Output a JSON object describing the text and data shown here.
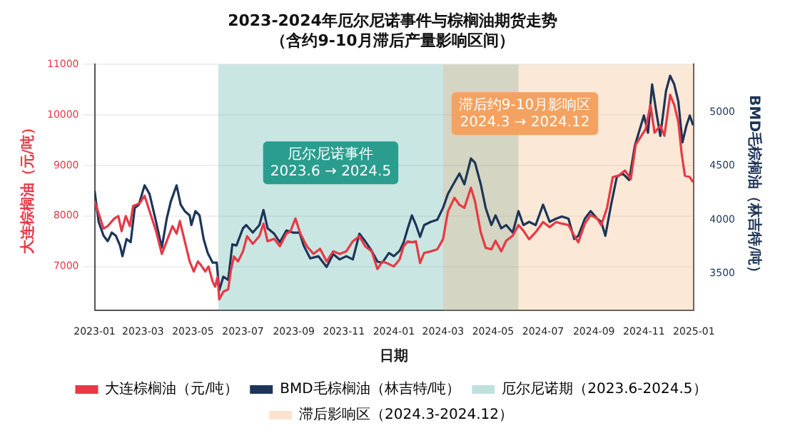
{
  "chart_data": {
    "type": "line",
    "title": "2023-2024年厄尔尼诺事件与棕榈油期货走势（含约9-10月滞后产量影响区间）",
    "xlabel": "日期",
    "ylabel": "大连棕榈油（元/吨）",
    "y2label": "BMD毛棕榈油（林吉特/吨）",
    "xlim": [
      "2023-01-01",
      "2025-01-01"
    ],
    "xticks": [
      "2023-01",
      "2023-03",
      "2023-05",
      "2023-07",
      "2023-09",
      "2023-11",
      "2024-01",
      "2024-03",
      "2024-05",
      "2024-07",
      "2024-09",
      "2024-11",
      "2025-01"
    ],
    "ylim": [
      6130,
      11000
    ],
    "yticks": [
      7000,
      8000,
      9000,
      10000,
      11000
    ],
    "y2lim": [
      3155,
      5445
    ],
    "y2ticks": [
      3500,
      4000,
      4500,
      5000
    ],
    "grid": "y",
    "legend": "bottom",
    "marker": "none",
    "line_style": "solid",
    "series": [
      {
        "name": "大连棕榈油（元/吨）",
        "color": "#e63946",
        "x": [
          "2023-01-01",
          "2023-01-07",
          "2023-01-12",
          "2023-01-17",
          "2023-01-25",
          "2023-01-30",
          "2023-02-03",
          "2023-02-08",
          "2023-02-13",
          "2023-02-17",
          "2023-02-25",
          "2023-03-03",
          "2023-03-09",
          "2023-03-17",
          "2023-03-24",
          "2023-03-30",
          "2023-04-06",
          "2023-04-11",
          "2023-04-15",
          "2023-04-21",
          "2023-04-27",
          "2023-05-02",
          "2023-05-07",
          "2023-05-12",
          "2023-05-16",
          "2023-05-20",
          "2023-05-25",
          "2023-05-28",
          "2023-05-31",
          "2023-06-02",
          "2023-06-07",
          "2023-06-13",
          "2023-06-16",
          "2023-06-20",
          "2023-06-25",
          "2023-07-01",
          "2023-07-06",
          "2023-07-13",
          "2023-07-21",
          "2023-07-26",
          "2023-07-31",
          "2023-08-08",
          "2023-08-15",
          "2023-08-23",
          "2023-08-28",
          "2023-09-03",
          "2023-09-09",
          "2023-09-17",
          "2023-09-25",
          "2023-10-03",
          "2023-10-11",
          "2023-10-19",
          "2023-10-27",
          "2023-11-04",
          "2023-11-12",
          "2023-11-20",
          "2023-11-27",
          "2023-12-05",
          "2023-12-12",
          "2023-12-18",
          "2023-12-26",
          "2024-01-01",
          "2024-01-08",
          "2024-01-13",
          "2024-01-18",
          "2024-01-23",
          "2024-01-28",
          "2024-02-02",
          "2024-02-07",
          "2024-02-15",
          "2024-02-23",
          "2024-03-01",
          "2024-03-07",
          "2024-03-15",
          "2024-03-21",
          "2024-03-27",
          "2024-04-04",
          "2024-04-09",
          "2024-04-16",
          "2024-04-22",
          "2024-04-29",
          "2024-05-04",
          "2024-05-11",
          "2024-05-17",
          "2024-05-25",
          "2024-06-01",
          "2024-06-07",
          "2024-06-14",
          "2024-06-22",
          "2024-07-01",
          "2024-07-09",
          "2024-07-17",
          "2024-07-24",
          "2024-08-01",
          "2024-08-08",
          "2024-08-13",
          "2024-08-21",
          "2024-08-28",
          "2024-09-05",
          "2024-09-10",
          "2024-09-17",
          "2024-09-24",
          "2024-10-01",
          "2024-10-09",
          "2024-10-16",
          "2024-10-22",
          "2024-11-03",
          "2024-11-09",
          "2024-11-14",
          "2024-11-21",
          "2024-11-26",
          "2024-12-03",
          "2024-12-08",
          "2024-12-13",
          "2024-12-17",
          "2024-12-21",
          "2024-12-27",
          "2024-12-31"
        ],
        "values": [
          8300,
          8000,
          7750,
          7800,
          7950,
          8000,
          7700,
          8000,
          7800,
          8200,
          8250,
          8400,
          8100,
          7700,
          7250,
          7500,
          7800,
          7650,
          7900,
          7500,
          7100,
          6900,
          7100,
          7000,
          6900,
          7000,
          6700,
          6600,
          6800,
          6350,
          6500,
          6550,
          6900,
          7200,
          7100,
          7300,
          7600,
          7450,
          7600,
          7850,
          7500,
          7550,
          7400,
          7650,
          7700,
          7950,
          7650,
          7400,
          7250,
          7350,
          7100,
          7300,
          7250,
          7300,
          7500,
          7600,
          7400,
          7300,
          6950,
          7100,
          7050,
          7000,
          7140,
          7400,
          7500,
          7480,
          7500,
          7070,
          7270,
          7300,
          7340,
          7540,
          8090,
          8360,
          8220,
          8160,
          8560,
          8290,
          7680,
          7370,
          7340,
          7510,
          7300,
          7510,
          7610,
          7820,
          7710,
          7540,
          7680,
          7880,
          7780,
          7880,
          7850,
          7820,
          7610,
          7480,
          7850,
          8020,
          7950,
          7820,
          8160,
          8770,
          8800,
          8900,
          8730,
          9410,
          9720,
          10200,
          9650,
          9790,
          9590,
          10400,
          10200,
          9860,
          9240,
          8800,
          8770,
          8670
        ]
      },
      {
        "name": "BMD毛棕榈油（林吉特/吨）",
        "color": "#1d3557",
        "axis": "y2",
        "x": [
          "2023-01-01",
          "2023-01-06",
          "2023-01-12",
          "2023-01-17",
          "2023-01-22",
          "2023-01-27",
          "2023-02-01",
          "2023-02-04",
          "2023-02-09",
          "2023-02-14",
          "2023-02-19",
          "2023-02-24",
          "2023-03-03",
          "2023-03-09",
          "2023-03-17",
          "2023-03-24",
          "2023-03-30",
          "2023-04-04",
          "2023-04-11",
          "2023-04-16",
          "2023-04-21",
          "2023-04-27",
          "2023-04-29",
          "2023-05-04",
          "2023-05-09",
          "2023-05-14",
          "2023-05-19",
          "2023-05-25",
          "2023-05-30",
          "2023-06-02",
          "2023-06-07",
          "2023-06-13",
          "2023-06-18",
          "2023-06-23",
          "2023-07-01",
          "2023-07-05",
          "2023-07-13",
          "2023-07-21",
          "2023-07-26",
          "2023-07-31",
          "2023-08-08",
          "2023-08-15",
          "2023-08-23",
          "2023-08-31",
          "2023-09-08",
          "2023-09-13",
          "2023-09-21",
          "2023-10-01",
          "2023-10-11",
          "2023-10-19",
          "2023-10-27",
          "2023-11-04",
          "2023-11-12",
          "2023-11-20",
          "2023-11-27",
          "2023-12-05",
          "2023-12-12",
          "2023-12-18",
          "2023-12-26",
          "2024-01-01",
          "2024-01-08",
          "2024-01-13",
          "2024-01-18",
          "2024-01-23",
          "2024-01-28",
          "2024-02-02",
          "2024-02-07",
          "2024-02-15",
          "2024-02-23",
          "2024-03-01",
          "2024-03-07",
          "2024-03-15",
          "2024-03-21",
          "2024-03-27",
          "2024-04-04",
          "2024-04-09",
          "2024-04-16",
          "2024-04-22",
          "2024-04-29",
          "2024-05-04",
          "2024-05-11",
          "2024-05-17",
          "2024-05-25",
          "2024-06-01",
          "2024-06-07",
          "2024-06-14",
          "2024-06-22",
          "2024-07-01",
          "2024-07-09",
          "2024-07-17",
          "2024-07-24",
          "2024-08-01",
          "2024-08-08",
          "2024-08-13",
          "2024-08-21",
          "2024-08-28",
          "2024-09-05",
          "2024-09-10",
          "2024-09-15",
          "2024-09-22",
          "2024-09-29",
          "2024-10-06",
          "2024-10-14",
          "2024-10-21",
          "2024-11-01",
          "2024-11-06",
          "2024-11-11",
          "2024-11-16",
          "2024-11-21",
          "2024-11-28",
          "2024-12-03",
          "2024-12-08",
          "2024-12-13",
          "2024-12-18",
          "2024-12-23",
          "2024-12-27",
          "2024-12-31"
        ],
        "values": [
          4270,
          3980,
          3850,
          3800,
          3880,
          3850,
          3760,
          3660,
          3820,
          3790,
          4110,
          4140,
          4320,
          4240,
          3980,
          3740,
          4010,
          4170,
          4320,
          4140,
          4080,
          4040,
          3950,
          4080,
          4040,
          3820,
          3690,
          3600,
          3600,
          3340,
          3470,
          3440,
          3770,
          3760,
          3920,
          3950,
          3880,
          3950,
          4090,
          3920,
          3870,
          3790,
          3900,
          3880,
          3880,
          3760,
          3640,
          3660,
          3560,
          3680,
          3630,
          3660,
          3630,
          3870,
          3800,
          3710,
          3610,
          3600,
          3690,
          3660,
          3710,
          3790,
          3920,
          4040,
          3950,
          3840,
          3950,
          3980,
          4000,
          4110,
          4240,
          4350,
          4430,
          4330,
          4570,
          4530,
          4330,
          4110,
          3950,
          4040,
          3920,
          3950,
          3880,
          4080,
          3950,
          3980,
          3950,
          4140,
          3980,
          4010,
          4030,
          4010,
          3820,
          3850,
          4010,
          4080,
          4010,
          3980,
          3850,
          4140,
          4400,
          4430,
          4370,
          4690,
          4970,
          4810,
          5260,
          5010,
          4780,
          5200,
          5340,
          5260,
          5100,
          4720,
          4880,
          4970,
          4880
        ]
      }
    ],
    "bands": [
      {
        "axis": "x",
        "from": "2023-06-01",
        "to": "2024-06-01",
        "label": "厄尔尼诺期（2023.6-2024.5）",
        "color": "#2a9d8f"
      },
      {
        "axis": "x",
        "from": "2024-03-01",
        "to": "2025-01-01",
        "label": "滞后影响区（2024.3-2024.12）",
        "color": "#f4a261"
      }
    ],
    "annotations": [
      "厄尔尼诺事件\n2023.6 → 2024.5",
      "滞后约9-10月影响区\n2024.3 → 2024.12"
    ]
  }
}
